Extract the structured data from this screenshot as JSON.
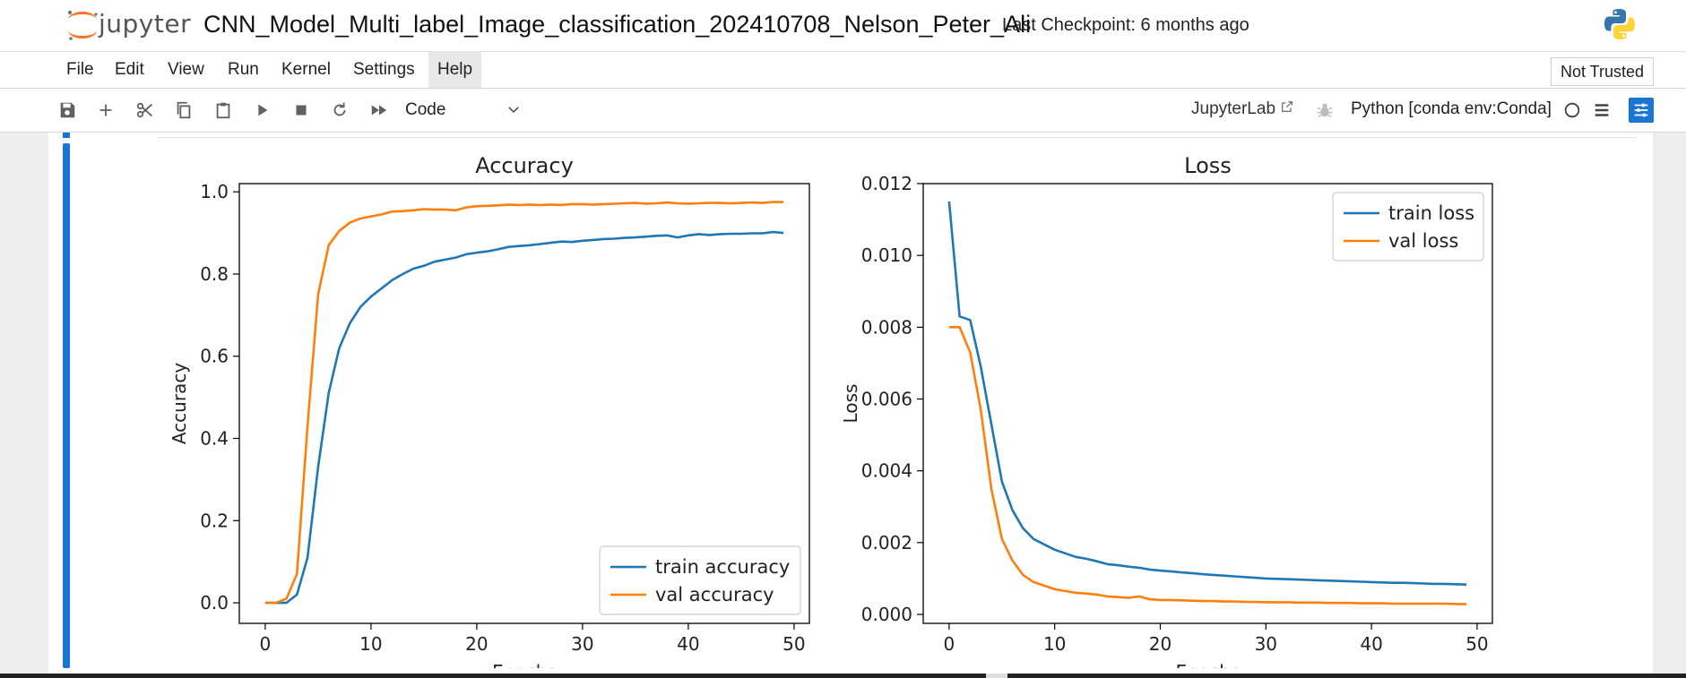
{
  "header": {
    "logo_text": "jupyter",
    "notebook_title": "CNN_Model_Multi_label_Image_classification_202410708_Nelson_Peter_Ali",
    "checkpoint": "Last Checkpoint: 6 months ago"
  },
  "menu": {
    "items": [
      "File",
      "Edit",
      "View",
      "Run",
      "Kernel",
      "Settings",
      "Help"
    ],
    "active": "Help",
    "trust_status": "Not Trusted"
  },
  "toolbar": {
    "cell_type": "Code",
    "jupyterlab_label": "JupyterLab",
    "kernel": "Python [conda env:Conda]"
  },
  "colors": {
    "accent": "#1976d2",
    "train": "#1f77b4",
    "val": "#ff7f0e"
  },
  "chart_data": [
    {
      "type": "line",
      "title": "Accuracy",
      "xlabel": "Epochs",
      "ylabel": "Accuracy",
      "xlim": [
        -2.45,
        51.45
      ],
      "ylim": [
        -0.05,
        1.02
      ],
      "xticks": [
        "0",
        "10",
        "20",
        "30",
        "40",
        "50"
      ],
      "yticks": [
        "0.0",
        "0.2",
        "0.4",
        "0.6",
        "0.8",
        "1.0"
      ],
      "grid": false,
      "legend_position": "lower-right",
      "series": [
        {
          "name": "train accuracy",
          "values": [
            0.0,
            0.0,
            0.0,
            0.02,
            0.11,
            0.33,
            0.51,
            0.62,
            0.68,
            0.72,
            0.745,
            0.765,
            0.785,
            0.8,
            0.813,
            0.82,
            0.83,
            0.835,
            0.84,
            0.848,
            0.852,
            0.855,
            0.86,
            0.866,
            0.868,
            0.87,
            0.873,
            0.876,
            0.879,
            0.878,
            0.881,
            0.883,
            0.885,
            0.886,
            0.888,
            0.889,
            0.891,
            0.893,
            0.894,
            0.889,
            0.894,
            0.897,
            0.895,
            0.897,
            0.898,
            0.898,
            0.899,
            0.899,
            0.902,
            0.9
          ]
        },
        {
          "name": "val accuracy",
          "values": [
            0.0,
            0.0,
            0.01,
            0.07,
            0.43,
            0.75,
            0.87,
            0.905,
            0.925,
            0.935,
            0.94,
            0.945,
            0.952,
            0.953,
            0.955,
            0.958,
            0.957,
            0.957,
            0.955,
            0.962,
            0.965,
            0.966,
            0.967,
            0.969,
            0.968,
            0.969,
            0.968,
            0.969,
            0.968,
            0.97,
            0.97,
            0.969,
            0.97,
            0.971,
            0.972,
            0.973,
            0.971,
            0.972,
            0.974,
            0.972,
            0.971,
            0.972,
            0.973,
            0.973,
            0.972,
            0.973,
            0.974,
            0.973,
            0.975,
            0.975
          ]
        }
      ]
    },
    {
      "type": "line",
      "title": "Loss",
      "xlabel": "Epochs",
      "ylabel": "Loss",
      "xlim": [
        -2.45,
        51.45
      ],
      "ylim": [
        -0.00025,
        0.012
      ],
      "xticks": [
        "0",
        "10",
        "20",
        "30",
        "40",
        "50"
      ],
      "yticks": [
        "0.000",
        "0.002",
        "0.004",
        "0.006",
        "0.008",
        "0.010",
        "0.012"
      ],
      "grid": false,
      "legend_position": "upper-right",
      "series": [
        {
          "name": "train loss",
          "values": [
            0.0115,
            0.0083,
            0.0082,
            0.0069,
            0.0053,
            0.0037,
            0.0029,
            0.0024,
            0.0021,
            0.00195,
            0.0018,
            0.0017,
            0.0016,
            0.00155,
            0.00148,
            0.0014,
            0.00137,
            0.00133,
            0.0013,
            0.00125,
            0.00122,
            0.0012,
            0.00117,
            0.00115,
            0.00112,
            0.0011,
            0.00108,
            0.00106,
            0.00104,
            0.00102,
            0.001,
            0.00099,
            0.00098,
            0.00097,
            0.00096,
            0.00095,
            0.00094,
            0.00093,
            0.00092,
            0.00091,
            0.0009,
            0.00089,
            0.00088,
            0.00088,
            0.00087,
            0.00086,
            0.00085,
            0.00085,
            0.00084,
            0.00083
          ]
        },
        {
          "name": "val loss",
          "values": [
            0.008,
            0.008,
            0.0073,
            0.0057,
            0.0035,
            0.0021,
            0.0015,
            0.0011,
            0.0009,
            0.0008,
            0.0007,
            0.00065,
            0.0006,
            0.00058,
            0.00055,
            0.0005,
            0.00048,
            0.00046,
            0.0005,
            0.00042,
            0.0004,
            0.0004,
            0.00039,
            0.00038,
            0.00037,
            0.00037,
            0.00036,
            0.00036,
            0.00035,
            0.00035,
            0.00034,
            0.00034,
            0.00034,
            0.00033,
            0.00033,
            0.00033,
            0.00032,
            0.00032,
            0.00032,
            0.00031,
            0.00031,
            0.00031,
            0.0003,
            0.0003,
            0.0003,
            0.0003,
            0.0003,
            0.0003,
            0.00029,
            0.00029
          ]
        }
      ]
    }
  ]
}
